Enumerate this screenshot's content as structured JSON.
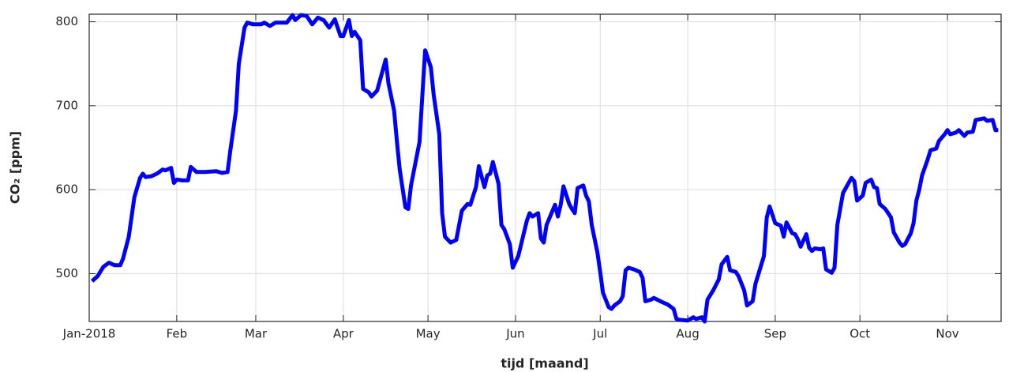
{
  "chart_data": {
    "type": "line",
    "xlabel": "tijd [maand]",
    "ylabel": "CO₂ [ppm]",
    "x": [
      1,
      3,
      5,
      7,
      9,
      11,
      12,
      14,
      16,
      18,
      19,
      20,
      22,
      24,
      26,
      27,
      29,
      30,
      31,
      33,
      35,
      36,
      38,
      41,
      45,
      47,
      49,
      50,
      52,
      53,
      55,
      56,
      58,
      61,
      62,
      64,
      66,
      70,
      72,
      73,
      75,
      77,
      79,
      81,
      83,
      85,
      87,
      89,
      90,
      92,
      93,
      94,
      96,
      97,
      99,
      100,
      102,
      105,
      106,
      108,
      109,
      110,
      112,
      113,
      114,
      117,
      118,
      119,
      121,
      122,
      124,
      125,
      126,
      128,
      130,
      132,
      134,
      135,
      137,
      138,
      140,
      141,
      142,
      143,
      145,
      146,
      147,
      149,
      150,
      152,
      154,
      155,
      156,
      157,
      159,
      160,
      161,
      162,
      164,
      165,
      166,
      167,
      168,
      170,
      171,
      172,
      173,
      175,
      176,
      177,
      178,
      180,
      181,
      182,
      184,
      185,
      186,
      188,
      189,
      190,
      191,
      193,
      195,
      196,
      197,
      199,
      200,
      203,
      205,
      207,
      208,
      209,
      212,
      214,
      215,
      217,
      218,
      219,
      221,
      223,
      224,
      226,
      227,
      229,
      230,
      232,
      233,
      235,
      236,
      237,
      239,
      240,
      241,
      243,
      245,
      246,
      247,
      249,
      250,
      251,
      252,
      254,
      255,
      256,
      257,
      259,
      260,
      261,
      263,
      264,
      265,
      266,
      267,
      269,
      270,
      271,
      272,
      274,
      275,
      277,
      278,
      279,
      280,
      282,
      284,
      285,
      287,
      288,
      289,
      291,
      292,
      293,
      294,
      295,
      297,
      298,
      300,
      301,
      303,
      304,
      305,
      307,
      308,
      310,
      311,
      313,
      314,
      317,
      318,
      320,
      321,
      322
    ],
    "series": [
      {
        "name": "CO₂",
        "color": "#0000ff",
        "values": [
          491,
          497,
          508,
          513,
          510,
          510,
          518,
          544,
          591,
          614,
          619,
          615,
          616,
          619,
          624,
          623,
          626,
          608,
          612,
          611,
          611,
          627,
          621,
          621,
          622,
          620,
          621,
          647,
          694,
          750,
          793,
          799,
          797,
          797,
          799,
          795,
          799,
          799,
          808,
          802,
          808,
          807,
          797,
          805,
          802,
          793,
          803,
          783,
          783,
          802,
          783,
          788,
          778,
          720,
          716,
          711,
          718,
          755,
          727,
          694,
          657,
          624,
          579,
          577,
          605,
          657,
          713,
          766,
          746,
          713,
          666,
          572,
          544,
          537,
          540,
          575,
          583,
          582,
          603,
          628,
          603,
          617,
          619,
          633,
          607,
          558,
          553,
          535,
          507,
          521,
          549,
          563,
          572,
          568,
          572,
          542,
          537,
          558,
          574,
          582,
          568,
          582,
          604,
          583,
          577,
          572,
          602,
          605,
          593,
          586,
          558,
          525,
          502,
          477,
          460,
          458,
          462,
          467,
          473,
          504,
          507,
          505,
          502,
          495,
          467,
          469,
          471,
          466,
          463,
          458,
          446,
          445,
          444,
          448,
          446,
          448,
          443,
          469,
          480,
          493,
          511,
          520,
          504,
          502,
          497,
          480,
          462,
          467,
          488,
          499,
          521,
          567,
          580,
          560,
          557,
          544,
          561,
          548,
          547,
          541,
          532,
          547,
          531,
          527,
          530,
          529,
          530,
          505,
          501,
          507,
          558,
          577,
          596,
          608,
          614,
          610,
          587,
          593,
          608,
          612,
          603,
          602,
          583,
          577,
          567,
          549,
          537,
          533,
          535,
          548,
          560,
          587,
          600,
          617,
          636,
          647,
          649,
          658,
          666,
          671,
          666,
          668,
          671,
          664,
          668,
          669,
          683,
          685,
          682,
          683,
          671,
          671
        ]
      }
    ],
    "xlim": [
      0,
      323
    ],
    "xticks": [
      {
        "value": 0,
        "label": "Jan-2018"
      },
      {
        "value": 31,
        "label": "Feb"
      },
      {
        "value": 59,
        "label": "Mar"
      },
      {
        "value": 90,
        "label": "Apr"
      },
      {
        "value": 120,
        "label": "May"
      },
      {
        "value": 151,
        "label": "Jun"
      },
      {
        "value": 181,
        "label": "Jul"
      },
      {
        "value": 212,
        "label": "Aug"
      },
      {
        "value": 243,
        "label": "Sep"
      },
      {
        "value": 273,
        "label": "Oct"
      },
      {
        "value": 304,
        "label": "Nov"
      }
    ],
    "ylim": [
      443,
      809
    ],
    "yticks": [
      500,
      600,
      700,
      800
    ],
    "grid": true
  }
}
